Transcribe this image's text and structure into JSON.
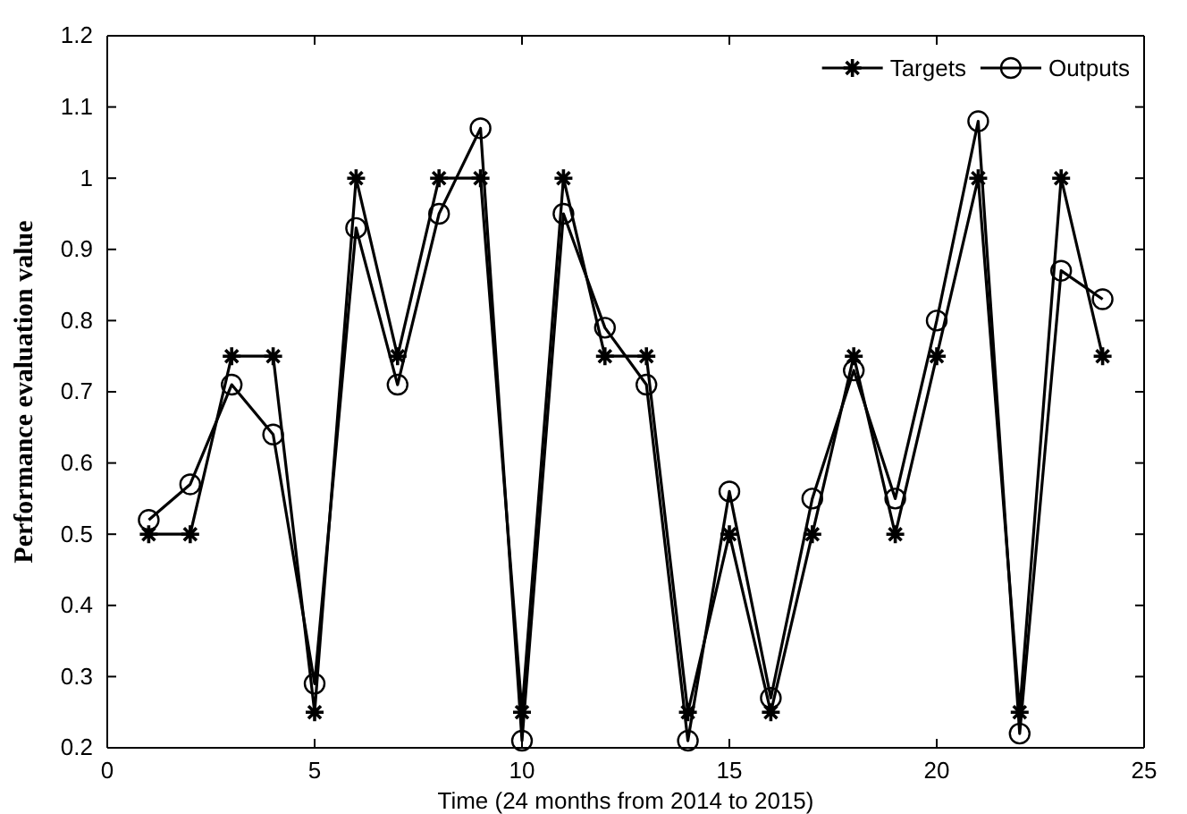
{
  "chart_data": {
    "type": "line",
    "xlabel": "Time (24 months from 2014 to 2015)",
    "ylabel": "Performance evaluation value",
    "x": [
      1,
      2,
      3,
      4,
      5,
      6,
      7,
      8,
      9,
      10,
      11,
      12,
      13,
      14,
      15,
      16,
      17,
      18,
      19,
      20,
      21,
      22,
      23,
      24
    ],
    "series": [
      {
        "name": "Targets",
        "color": "#000000",
        "marker": "cross",
        "values": [
          0.5,
          0.5,
          0.75,
          0.75,
          0.25,
          1,
          0.75,
          1,
          1,
          0.25,
          1,
          0.75,
          0.75,
          0.25,
          0.5,
          0.25,
          0.5,
          0.75,
          0.5,
          0.75,
          1,
          0.25,
          1,
          0.75
        ]
      },
      {
        "name": "Outputs",
        "color": "#000000",
        "marker": "circle",
        "values": [
          0.52,
          0.57,
          0.71,
          0.64,
          0.29,
          0.93,
          0.71,
          0.95,
          1.07,
          0.21,
          0.95,
          0.79,
          0.71,
          0.21,
          0.56,
          0.27,
          0.55,
          0.73,
          0.55,
          0.8,
          1.08,
          0.22,
          0.87,
          0.83
        ]
      }
    ],
    "xlim": [
      0,
      25
    ],
    "xticks": [
      0,
      5,
      10,
      15,
      20,
      25
    ],
    "ylim": [
      0.2,
      1.2
    ],
    "yticks": [
      0.2,
      0.3,
      0.4,
      0.5,
      0.6,
      0.7,
      0.8,
      0.9,
      1,
      1.1,
      1.2
    ],
    "grid": false,
    "legend": "top right",
    "line_style": "solid"
  }
}
